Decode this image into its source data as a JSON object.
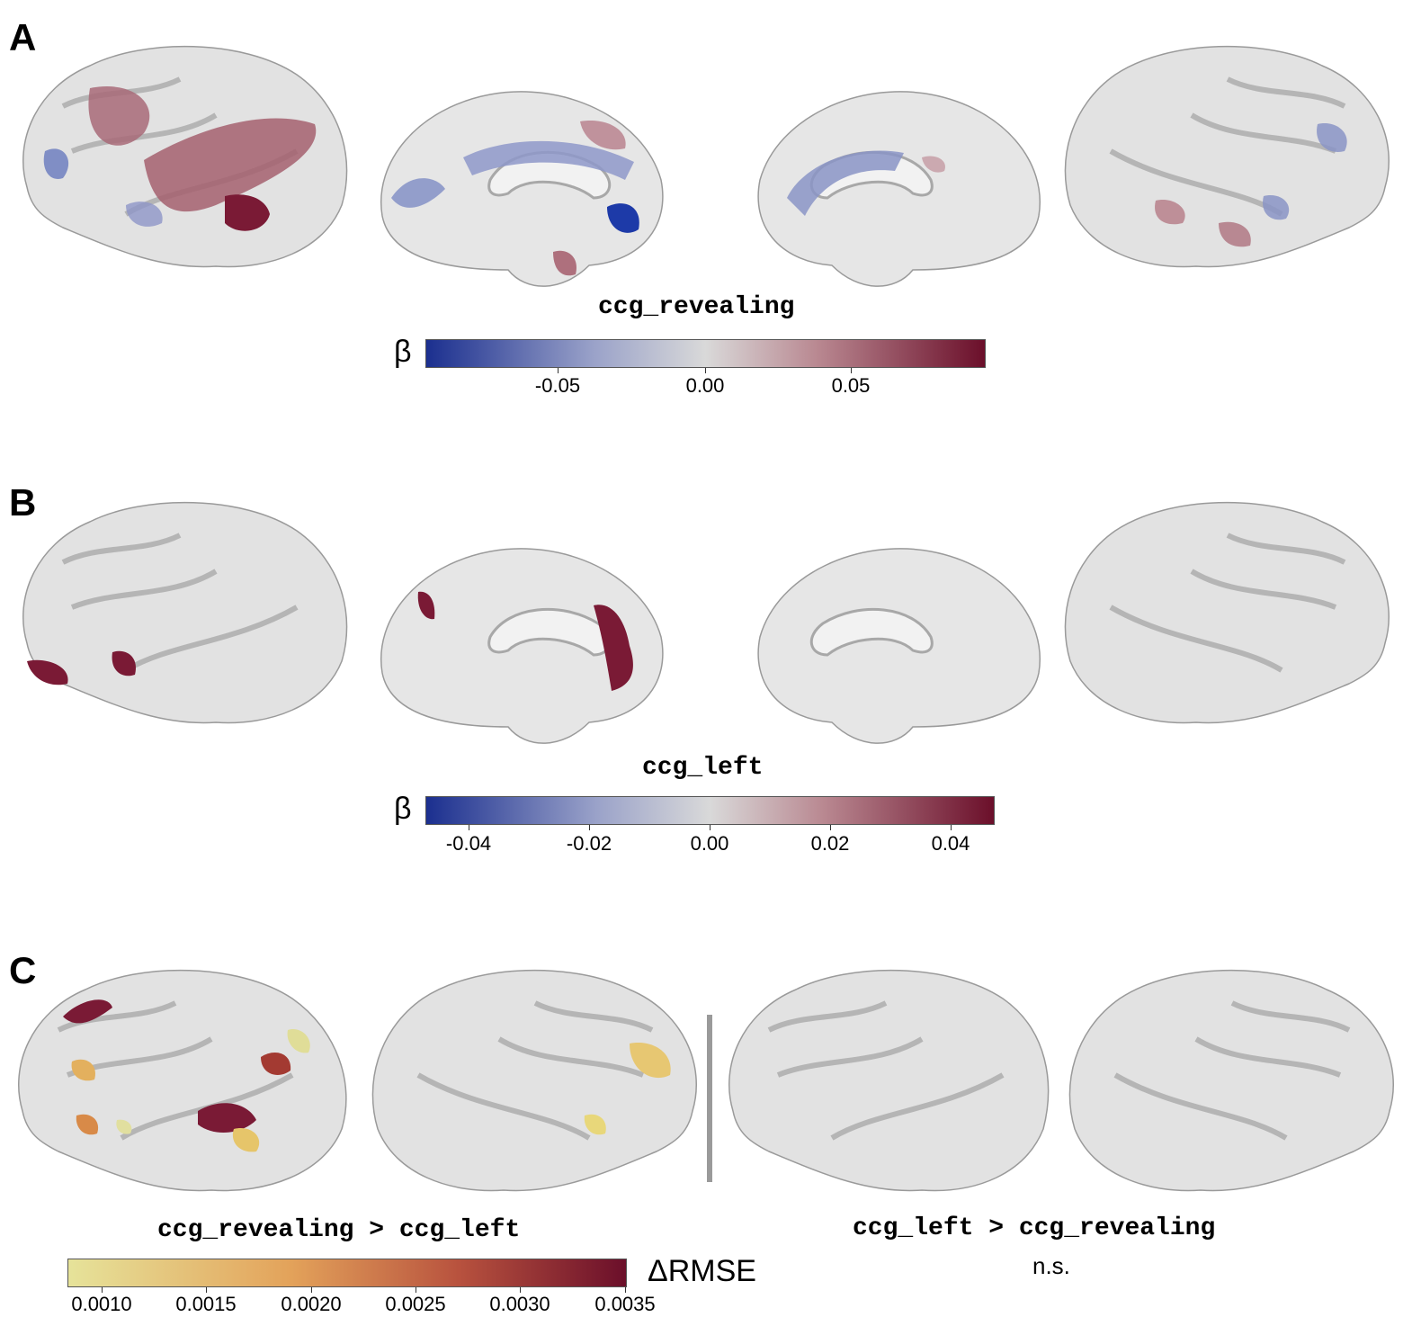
{
  "panels": {
    "a": {
      "letter": "A",
      "title": "ccg_revealing",
      "colorbar_symbol": "β",
      "colorbar_ticks": [
        "-0.05",
        "0.00",
        "0.05"
      ],
      "colormap": [
        "#1b2f8f",
        "#d9d9d9",
        "#6b0f2a"
      ]
    },
    "b": {
      "letter": "B",
      "title": "ccg_left",
      "colorbar_symbol": "β",
      "colorbar_ticks": [
        "-0.04",
        "-0.02",
        "0.00",
        "0.02",
        "0.04"
      ],
      "colormap": [
        "#1b2f8f",
        "#d9d9d9",
        "#6b0f2a"
      ]
    },
    "c": {
      "letter": "C",
      "left_title": "ccg_revealing > ccg_left",
      "right_title": "ccg_left > ccg_revealing",
      "right_note": "n.s.",
      "colorbar_symbol": "ΔRMSE",
      "colorbar_ticks": [
        "0.0010",
        "0.0015",
        "0.0020",
        "0.0025",
        "0.0030",
        "0.0035"
      ],
      "colormap": [
        "#e6e39a",
        "#e3a25a",
        "#b8523e",
        "#6b0f2a"
      ]
    }
  }
}
